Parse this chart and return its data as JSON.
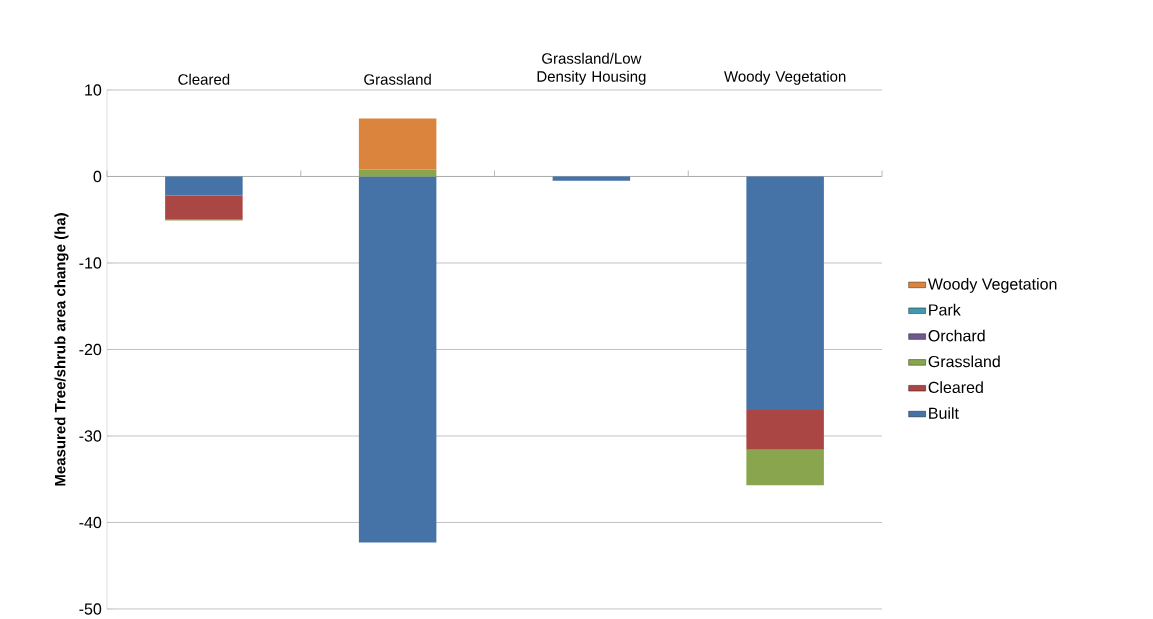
{
  "chart_data": {
    "type": "bar",
    "stacked": true,
    "categories": [
      "Cleared",
      "Grassland",
      "Grassland/Low Density Housing",
      "Woody Vegetation"
    ],
    "ylabel": "Measured Tree/shrub area change (ha)",
    "ylim": [
      -50,
      10
    ],
    "yticks": [
      -50,
      -40,
      -30,
      -20,
      -10,
      0,
      10
    ],
    "grid": "y",
    "legend": "right",
    "series": [
      {
        "name": "Built",
        "color": "#4572a7",
        "values": [
          -2.2,
          -42.3,
          -0.5,
          -27.0
        ]
      },
      {
        "name": "Cleared",
        "color": "#aa4643",
        "values": [
          -2.8,
          0,
          0,
          -4.6
        ]
      },
      {
        "name": "Grassland",
        "color": "#89a54e",
        "values": [
          -0.1,
          0.8,
          0,
          -4.1
        ]
      },
      {
        "name": "Orchard",
        "color": "#71588f",
        "values": [
          0,
          0,
          0,
          0
        ]
      },
      {
        "name": "Park",
        "color": "#4198af",
        "values": [
          0,
          0,
          0,
          0
        ]
      },
      {
        "name": "Woody Vegetation",
        "color": "#db843d",
        "values": [
          0,
          5.9,
          0,
          0
        ]
      }
    ]
  }
}
